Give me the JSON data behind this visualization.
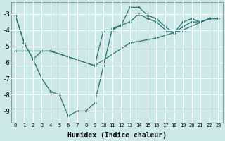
{
  "xlabel": "Humidex (Indice chaleur)",
  "background_color": "#cce8e8",
  "line_color": "#2a7070",
  "grid_color": "#ffffff",
  "ylim": [
    -9.7,
    -2.3
  ],
  "xlim": [
    -0.5,
    23.5
  ],
  "yticks": [
    -3,
    -4,
    -5,
    -6,
    -7,
    -8,
    -9
  ],
  "xticks": [
    0,
    1,
    2,
    3,
    4,
    5,
    6,
    7,
    8,
    9,
    10,
    11,
    12,
    13,
    14,
    15,
    16,
    17,
    18,
    19,
    20,
    21,
    22,
    23
  ],
  "series": [
    {
      "x": [
        0,
        1,
        2,
        3,
        4,
        5,
        6,
        7,
        8,
        9,
        10,
        11,
        12,
        13,
        14,
        15,
        16,
        17,
        18,
        19,
        20,
        21,
        22,
        23
      ],
      "y": [
        -3.1,
        -4.8,
        -5.8,
        -7.0,
        -7.8,
        -8.0,
        -9.3,
        -9.0,
        -9.0,
        -8.5,
        -6.2,
        -3.9,
        -3.7,
        -2.6,
        -2.6,
        -3.1,
        -3.3,
        -3.8,
        -4.2,
        -3.5,
        -3.3,
        -3.5,
        -3.3,
        -3.3
      ]
    },
    {
      "x": [
        0,
        1,
        2,
        3,
        4,
        9,
        10,
        11,
        12,
        13,
        14,
        15,
        16,
        17,
        18,
        19,
        20,
        21,
        22,
        23
      ],
      "y": [
        -3.1,
        -4.8,
        -5.8,
        -5.3,
        -5.3,
        -6.2,
        -4.0,
        -4.0,
        -3.7,
        -3.5,
        -3.0,
        -3.3,
        -3.5,
        -4.0,
        -4.2,
        -3.8,
        -3.5,
        -3.5,
        -3.3,
        -3.3
      ]
    },
    {
      "x": [
        0,
        4,
        9,
        13,
        16,
        19,
        22,
        23
      ],
      "y": [
        -5.3,
        -5.3,
        -6.2,
        -4.8,
        -4.5,
        -4.0,
        -3.3,
        -3.3
      ]
    }
  ]
}
